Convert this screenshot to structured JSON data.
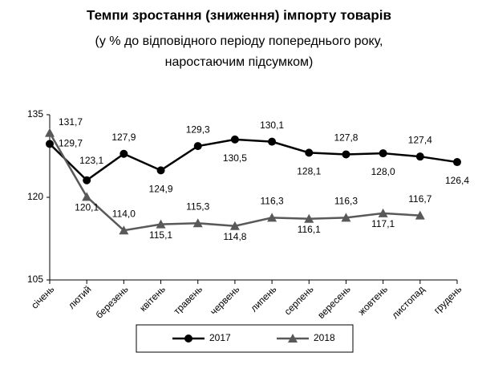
{
  "chart_data": {
    "type": "line",
    "title": "Темпи зростання (зниження) імпорту товарів",
    "subtitle": "(у % до відповідного періоду попереднього року, наростаючим підсумком)",
    "categories": [
      "січень",
      "лютий",
      "березень",
      "квітень",
      "травень",
      "червень",
      "липень",
      "серпень",
      "вересень",
      "жовтень",
      "листопад",
      "грудень"
    ],
    "series": [
      {
        "name": "2017",
        "color": "#000000",
        "marker": "circle",
        "values": [
          129.7,
          123.1,
          127.9,
          124.9,
          129.3,
          130.5,
          130.1,
          128.1,
          127.8,
          128.0,
          127.4,
          126.4
        ],
        "value_labels": [
          "129,7",
          "123,1",
          "127,9",
          "124,9",
          "129,3",
          "130,5",
          "130,1",
          "128,1",
          "127,8",
          "128,0",
          "127,4",
          "126,4"
        ]
      },
      {
        "name": "2018",
        "color": "#595959",
        "marker": "triangle",
        "values": [
          131.7,
          120.1,
          114.0,
          115.1,
          115.3,
          114.8,
          116.3,
          116.1,
          116.3,
          117.1,
          116.7,
          null
        ],
        "value_labels": [
          "131,7",
          "120,1",
          "114,0",
          "115,1",
          "115,3",
          "114,8",
          "116,3",
          "116,1",
          "116,3",
          "117,1",
          "116,7",
          null
        ]
      }
    ],
    "ylim": [
      105,
      135
    ],
    "yticks": [
      105,
      120,
      135
    ],
    "grid": false,
    "legend": "bottom"
  }
}
